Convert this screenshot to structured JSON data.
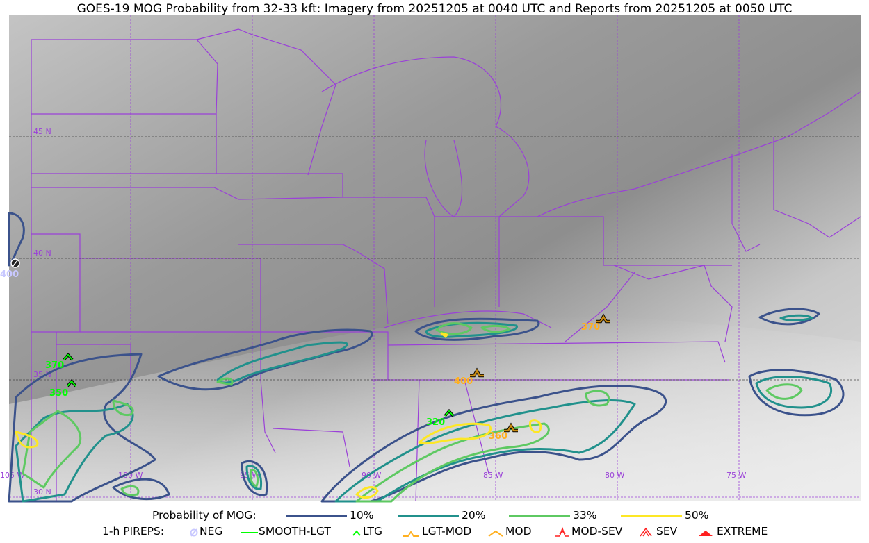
{
  "title": "GOES-19 MOG Probability from 32-33 kft: Imagery from 20251205 at 0040 UTC and Reports from 20251205 at 0050 UTC",
  "map": {
    "lat_labels": [
      "45 N",
      "40 N",
      "35 N",
      "30 N"
    ],
    "lon_labels": [
      "105 W",
      "100 W",
      "95 W",
      "90 W",
      "85 W",
      "80 W",
      "75 W"
    ],
    "border_color": "#9a40d8",
    "pireps": [
      {
        "type": "NEG",
        "altitude": "400",
        "color": "#c8c8ff"
      },
      {
        "type": "LTG",
        "altitude": "370",
        "color": "#00ff00"
      },
      {
        "type": "LTG",
        "altitude": "350",
        "color": "#00ff00"
      },
      {
        "type": "LTG",
        "altitude": "320",
        "color": "#00ff00"
      },
      {
        "type": "LGT-MOD",
        "altitude": "400",
        "color": "#ffb020"
      },
      {
        "type": "LGT-MOD",
        "altitude": "370",
        "color": "#ffb020"
      },
      {
        "type": "LGT-MOD",
        "altitude": "360",
        "color": "#ffb020"
      }
    ]
  },
  "legend": {
    "probability_label": "Probability of MOG:",
    "levels": [
      {
        "label": "10%",
        "color": "#3b528b"
      },
      {
        "label": "20%",
        "color": "#21918c"
      },
      {
        "label": "33%",
        "color": "#5ec962"
      },
      {
        "label": "50%",
        "color": "#fde725"
      }
    ],
    "pirep_label": "1-h PIREPS:",
    "pirep_types": [
      {
        "label": "NEG",
        "color": "#c8c8ff",
        "icon": "neg-circle-icon"
      },
      {
        "label": "SMOOTH-LGT",
        "color": "#00ff00",
        "icon": "line-icon"
      },
      {
        "label": "LTG",
        "color": "#00ff00",
        "icon": "caret-icon"
      },
      {
        "label": "LGT-MOD",
        "color": "#ffb020",
        "icon": "caret-bar-icon"
      },
      {
        "label": "MOD",
        "color": "#ffb020",
        "icon": "caret-icon"
      },
      {
        "label": "MOD-SEV",
        "color": "#ff2020",
        "icon": "double-caret-bar-icon"
      },
      {
        "label": "SEV",
        "color": "#ff2020",
        "icon": "double-caret-icon"
      },
      {
        "label": "EXTREME",
        "color": "#ff2020",
        "icon": "filled-triangle-icon"
      }
    ]
  }
}
